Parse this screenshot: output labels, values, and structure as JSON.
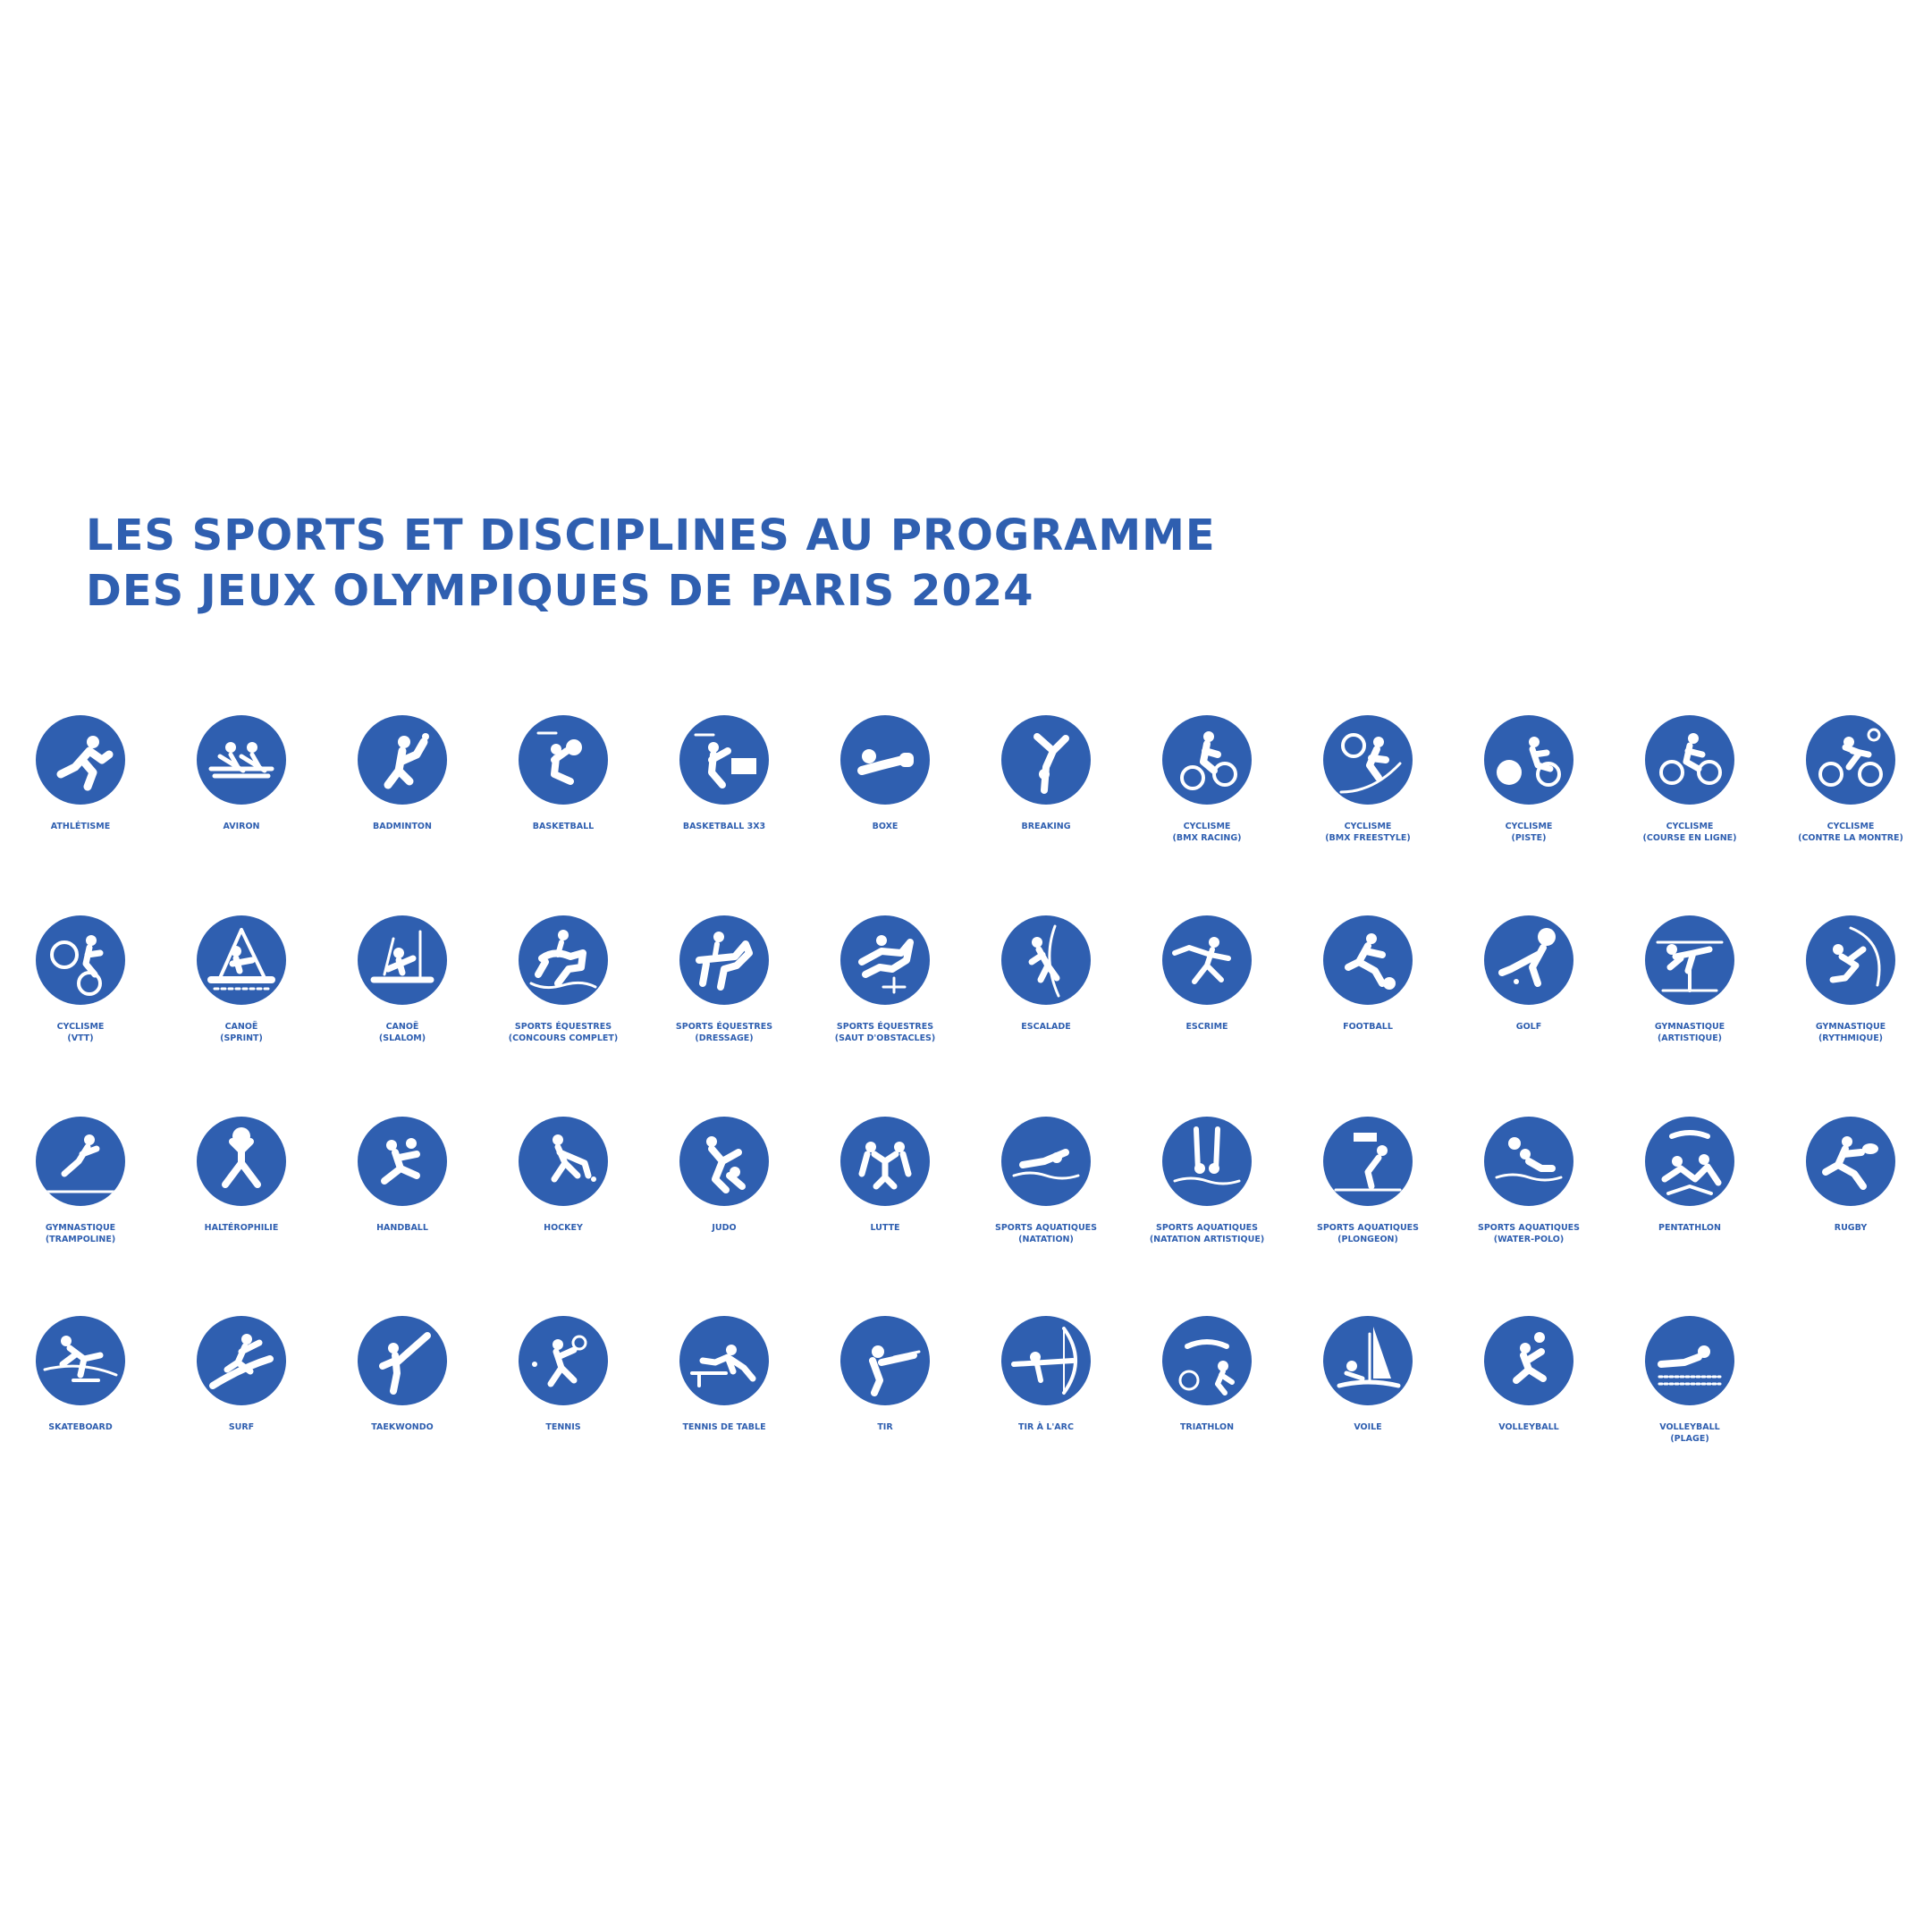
{
  "title": {
    "line1": "LES SPORTS ET DISCIPLINES AU PROGRAMME",
    "line2": "DES JEUX OLYMPIQUES DE PARIS 2024"
  },
  "colors": {
    "accent": "#2f5fb0",
    "background": "#ffffff",
    "pictogram": "#ffffff"
  },
  "sports": [
    {
      "label": "ATHLÉTISME",
      "sub": "",
      "icon": "athletics-icon"
    },
    {
      "label": "AVIRON",
      "sub": "",
      "icon": "rowing-icon"
    },
    {
      "label": "BADMINTON",
      "sub": "",
      "icon": "badminton-icon"
    },
    {
      "label": "BASKETBALL",
      "sub": "",
      "icon": "basketball-icon"
    },
    {
      "label": "BASKETBALL 3X3",
      "sub": "",
      "icon": "basketball-3x3-icon"
    },
    {
      "label": "BOXE",
      "sub": "",
      "icon": "boxing-icon"
    },
    {
      "label": "BREAKING",
      "sub": "",
      "icon": "breaking-icon"
    },
    {
      "label": "CYCLISME",
      "sub": "(BMX RACING)",
      "icon": "cycling-bmx-racing-icon"
    },
    {
      "label": "CYCLISME",
      "sub": "(BMX FREESTYLE)",
      "icon": "cycling-bmx-freestyle-icon"
    },
    {
      "label": "CYCLISME",
      "sub": "(PISTE)",
      "icon": "cycling-track-icon"
    },
    {
      "label": "CYCLISME",
      "sub": "(COURSE EN LIGNE)",
      "icon": "cycling-road-icon"
    },
    {
      "label": "CYCLISME",
      "sub": "(CONTRE LA MONTRE)",
      "icon": "cycling-time-trial-icon"
    },
    {
      "label": "CYCLISME",
      "sub": "(VTT)",
      "icon": "cycling-mountain-bike-icon"
    },
    {
      "label": "CANOË",
      "sub": "(SPRINT)",
      "icon": "canoe-sprint-icon"
    },
    {
      "label": "CANOË",
      "sub": "(SLALOM)",
      "icon": "canoe-slalom-icon"
    },
    {
      "label": "SPORTS ÉQUESTRES",
      "sub": "(CONCOURS COMPLET)",
      "icon": "equestrian-eventing-icon"
    },
    {
      "label": "SPORTS ÉQUESTRES",
      "sub": "(DRESSAGE)",
      "icon": "equestrian-dressage-icon"
    },
    {
      "label": "SPORTS ÉQUESTRES",
      "sub": "(SAUT D'OBSTACLES)",
      "icon": "equestrian-jumping-icon"
    },
    {
      "label": "ESCALADE",
      "sub": "",
      "icon": "climbing-icon"
    },
    {
      "label": "ESCRIME",
      "sub": "",
      "icon": "fencing-icon"
    },
    {
      "label": "FOOTBALL",
      "sub": "",
      "icon": "football-icon"
    },
    {
      "label": "GOLF",
      "sub": "",
      "icon": "golf-icon"
    },
    {
      "label": "GYMNASTIQUE",
      "sub": "(ARTISTIQUE)",
      "icon": "gymnastics-artistic-icon"
    },
    {
      "label": "GYMNASTIQUE",
      "sub": "(RYTHMIQUE)",
      "icon": "gymnastics-rhythmic-icon"
    },
    {
      "label": "GYMNASTIQUE",
      "sub": "(TRAMPOLINE)",
      "icon": "trampoline-icon"
    },
    {
      "label": "HALTÉROPHILIE",
      "sub": "",
      "icon": "weightlifting-icon"
    },
    {
      "label": "HANDBALL",
      "sub": "",
      "icon": "handball-icon"
    },
    {
      "label": "HOCKEY",
      "sub": "",
      "icon": "hockey-icon"
    },
    {
      "label": "JUDO",
      "sub": "",
      "icon": "judo-icon"
    },
    {
      "label": "LUTTE",
      "sub": "",
      "icon": "wrestling-icon"
    },
    {
      "label": "SPORTS AQUATIQUES",
      "sub": "(NATATION)",
      "icon": "swimming-icon"
    },
    {
      "label": "SPORTS AQUATIQUES",
      "sub": "(NATATION ARTISTIQUE)",
      "icon": "artistic-swimming-icon"
    },
    {
      "label": "SPORTS AQUATIQUES",
      "sub": "(PLONGEON)",
      "icon": "diving-icon"
    },
    {
      "label": "SPORTS AQUATIQUES",
      "sub": "(WATER-POLO)",
      "icon": "water-polo-icon"
    },
    {
      "label": "PENTATHLON",
      "sub": "",
      "icon": "pentathlon-icon"
    },
    {
      "label": "RUGBY",
      "sub": "",
      "icon": "rugby-icon"
    },
    {
      "label": "SKATEBOARD",
      "sub": "",
      "icon": "skateboard-icon"
    },
    {
      "label": "SURF",
      "sub": "",
      "icon": "surf-icon"
    },
    {
      "label": "TAEKWONDO",
      "sub": "",
      "icon": "taekwondo-icon"
    },
    {
      "label": "TENNIS",
      "sub": "",
      "icon": "tennis-icon"
    },
    {
      "label": "TENNIS DE TABLE",
      "sub": "",
      "icon": "table-tennis-icon"
    },
    {
      "label": "TIR",
      "sub": "",
      "icon": "shooting-icon"
    },
    {
      "label": "TIR À L'ARC",
      "sub": "",
      "icon": "archery-icon"
    },
    {
      "label": "TRIATHLON",
      "sub": "",
      "icon": "triathlon-icon"
    },
    {
      "label": "VOILE",
      "sub": "",
      "icon": "sailing-icon"
    },
    {
      "label": "VOLLEYBALL",
      "sub": "",
      "icon": "volleyball-icon"
    },
    {
      "label": "VOLLEYBALL",
      "sub": "(PLAGE)",
      "icon": "beach-volleyball-icon"
    }
  ]
}
